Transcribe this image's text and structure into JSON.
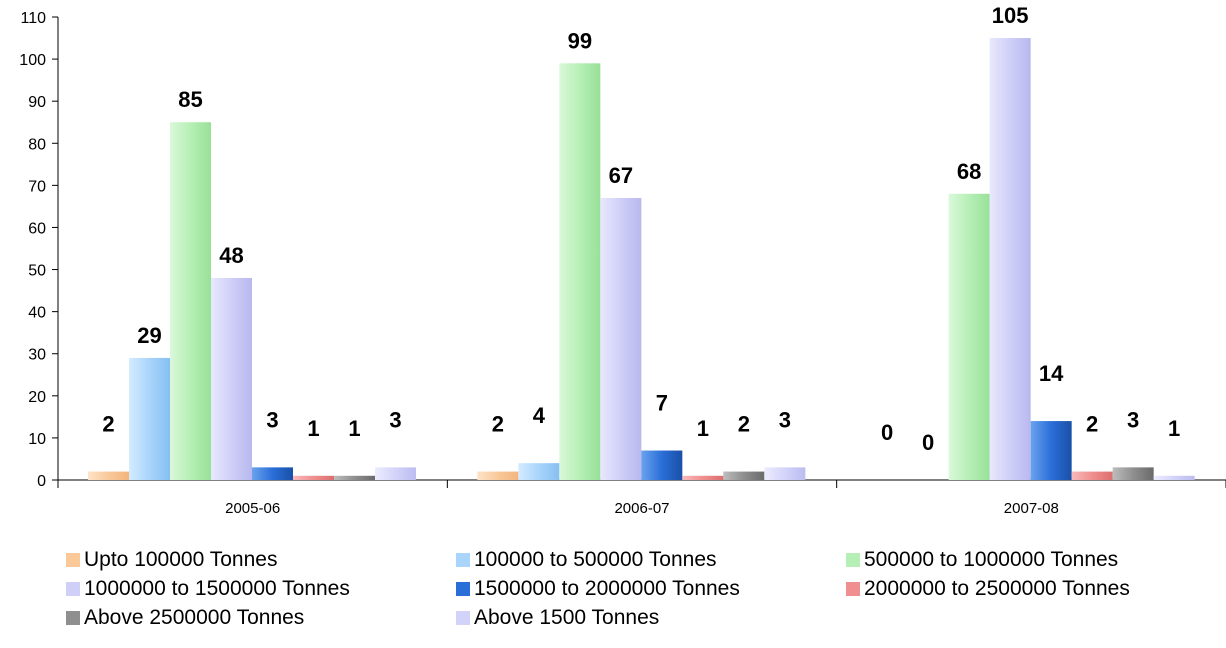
{
  "chart_data": {
    "type": "bar",
    "categories": [
      "2005-06",
      "2006-07",
      "2007-08"
    ],
    "ylim": [
      0,
      110
    ],
    "yticks": [
      0,
      10,
      20,
      30,
      40,
      50,
      60,
      70,
      80,
      90,
      100,
      110
    ],
    "grid": false,
    "legend_position": "bottom",
    "series": [
      {
        "name": "Upto 100000 Tonnes",
        "color": "#f9c99a",
        "values": [
          2,
          2,
          0
        ]
      },
      {
        "name": "100000 to 500000 Tonnes",
        "color": "#a9d4fb",
        "values": [
          29,
          4,
          0
        ]
      },
      {
        "name": "500000 to 1000000 Tonnes",
        "color": "#b6efb6",
        "values": [
          85,
          99,
          68
        ]
      },
      {
        "name": "1000000 to 1500000 Tonnes",
        "color": "#cfcff8",
        "values": [
          48,
          67,
          105
        ]
      },
      {
        "name": "1500000 to 2000000 Tonnes",
        "color": "#2a6ed8",
        "values": [
          3,
          7,
          14
        ]
      },
      {
        "name": "2000000 to 2500000 Tonnes",
        "color": "#f08f8f",
        "values": [
          1,
          1,
          2
        ]
      },
      {
        "name": "Above 2500000 Tonnes",
        "color": "#8f8f8f",
        "values": [
          1,
          2,
          3
        ]
      },
      {
        "name": "Above 1500 Tonnes",
        "color": "#d3d3fa",
        "values": [
          3,
          3,
          1
        ]
      }
    ]
  }
}
